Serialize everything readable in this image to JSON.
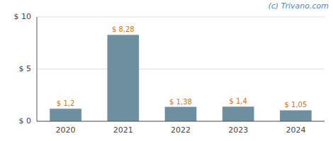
{
  "chart_data": {
    "type": "bar",
    "categories": [
      "2020",
      "2021",
      "2022",
      "2023",
      "2024"
    ],
    "values": [
      1.2,
      8.28,
      1.38,
      1.4,
      1.05
    ],
    "value_labels": [
      "$ 1,2",
      "$ 8,28",
      "$ 1,38",
      "$ 1,4",
      "$ 1,05"
    ],
    "color": "#6d8fa0",
    "ylim": [
      0,
      10
    ],
    "yticks": [
      {
        "value": 0,
        "label": "$ 0"
      },
      {
        "value": 5,
        "label": "$ 5"
      },
      {
        "value": 10,
        "label": "$ 10"
      }
    ],
    "grid": true,
    "data_labels": true,
    "annotations": [
      "(c) Trivano.com"
    ]
  }
}
